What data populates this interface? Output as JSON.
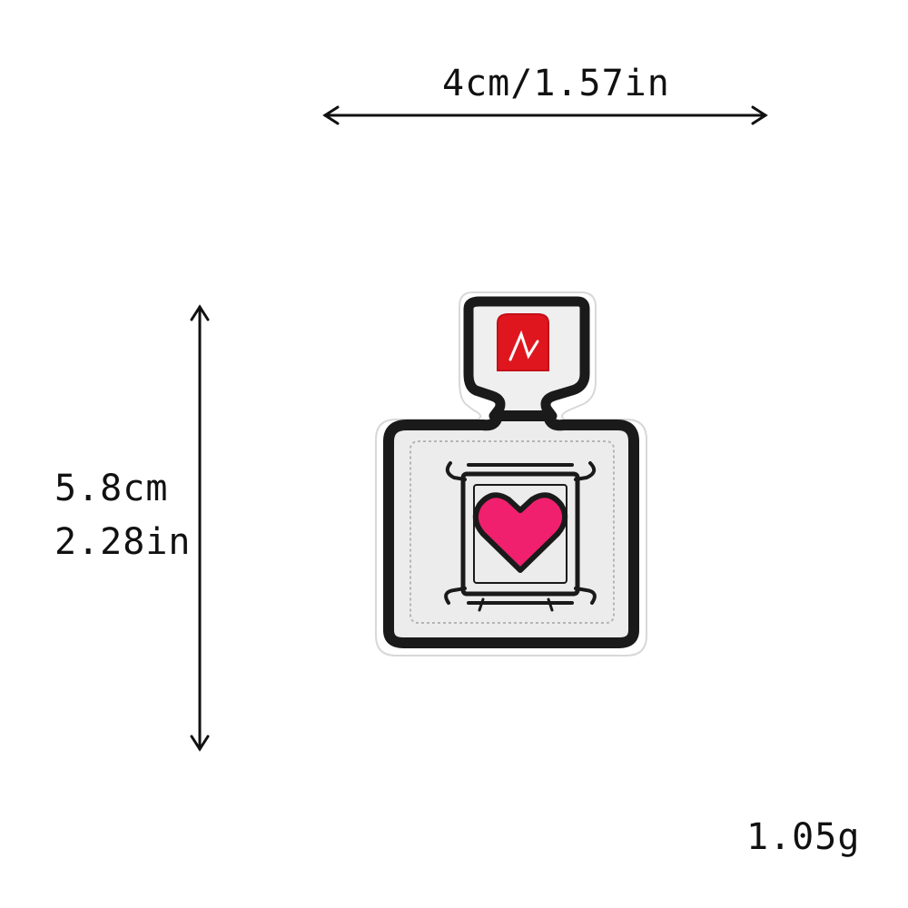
{
  "dimensions": {
    "width_label": "4cm/1.57in",
    "height_cm_label": "5.8cm",
    "height_in_label": "2.28in"
  },
  "weight_label": "1.05g",
  "product": {
    "icon": "perfume-bottle-patch",
    "colors": {
      "outline": "#1a1a1a",
      "body": "#ececec",
      "cap": "#e0161e",
      "heart": "#f0206e",
      "backing": "#ffffff"
    }
  }
}
